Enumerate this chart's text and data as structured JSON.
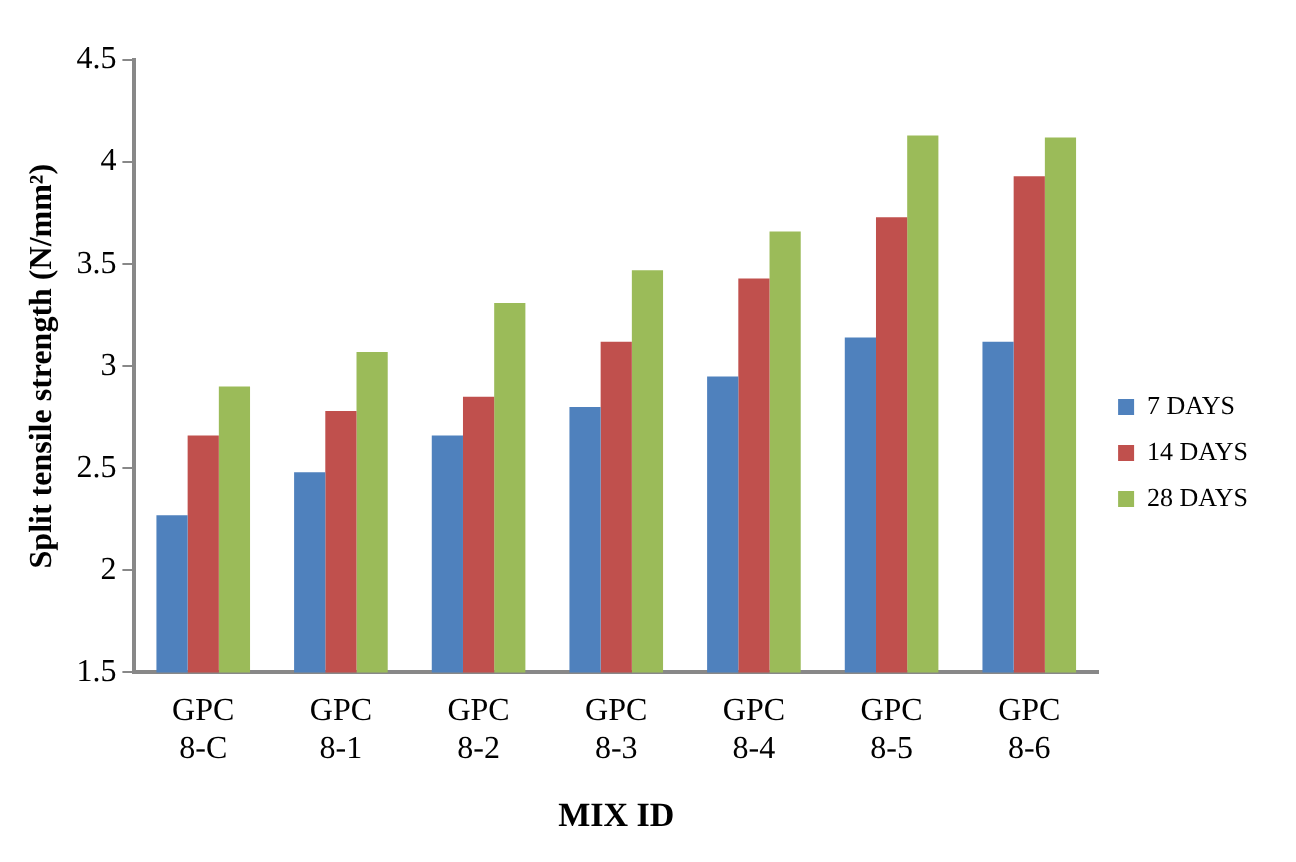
{
  "chart_data": {
    "type": "bar",
    "xlabel": "MIX ID",
    "ylabel": "Split tensile strength (N/mm²)",
    "categories": [
      "GPC 8-C",
      "GPC 8-1",
      "GPC 8-2",
      "GPC 8-3",
      "GPC 8-4",
      "GPC 8-5",
      "GPC 8-6"
    ],
    "series": [
      {
        "name": "7 DAYS",
        "color": "#4f81bd",
        "values": [
          2.27,
          2.48,
          2.66,
          2.8,
          2.95,
          3.14,
          3.12
        ]
      },
      {
        "name": "14 DAYS",
        "color": "#c0504d",
        "values": [
          2.66,
          2.78,
          2.85,
          3.12,
          3.43,
          3.73,
          3.93
        ]
      },
      {
        "name": "28 DAYS",
        "color": "#9bbb59",
        "values": [
          2.9,
          3.07,
          3.31,
          3.47,
          3.66,
          4.13,
          4.12
        ]
      }
    ],
    "ylim": [
      1.5,
      4.5
    ],
    "yticks": [
      1.5,
      2,
      2.5,
      3,
      3.5,
      4,
      4.5
    ],
    "grid": false,
    "legend": "right"
  }
}
